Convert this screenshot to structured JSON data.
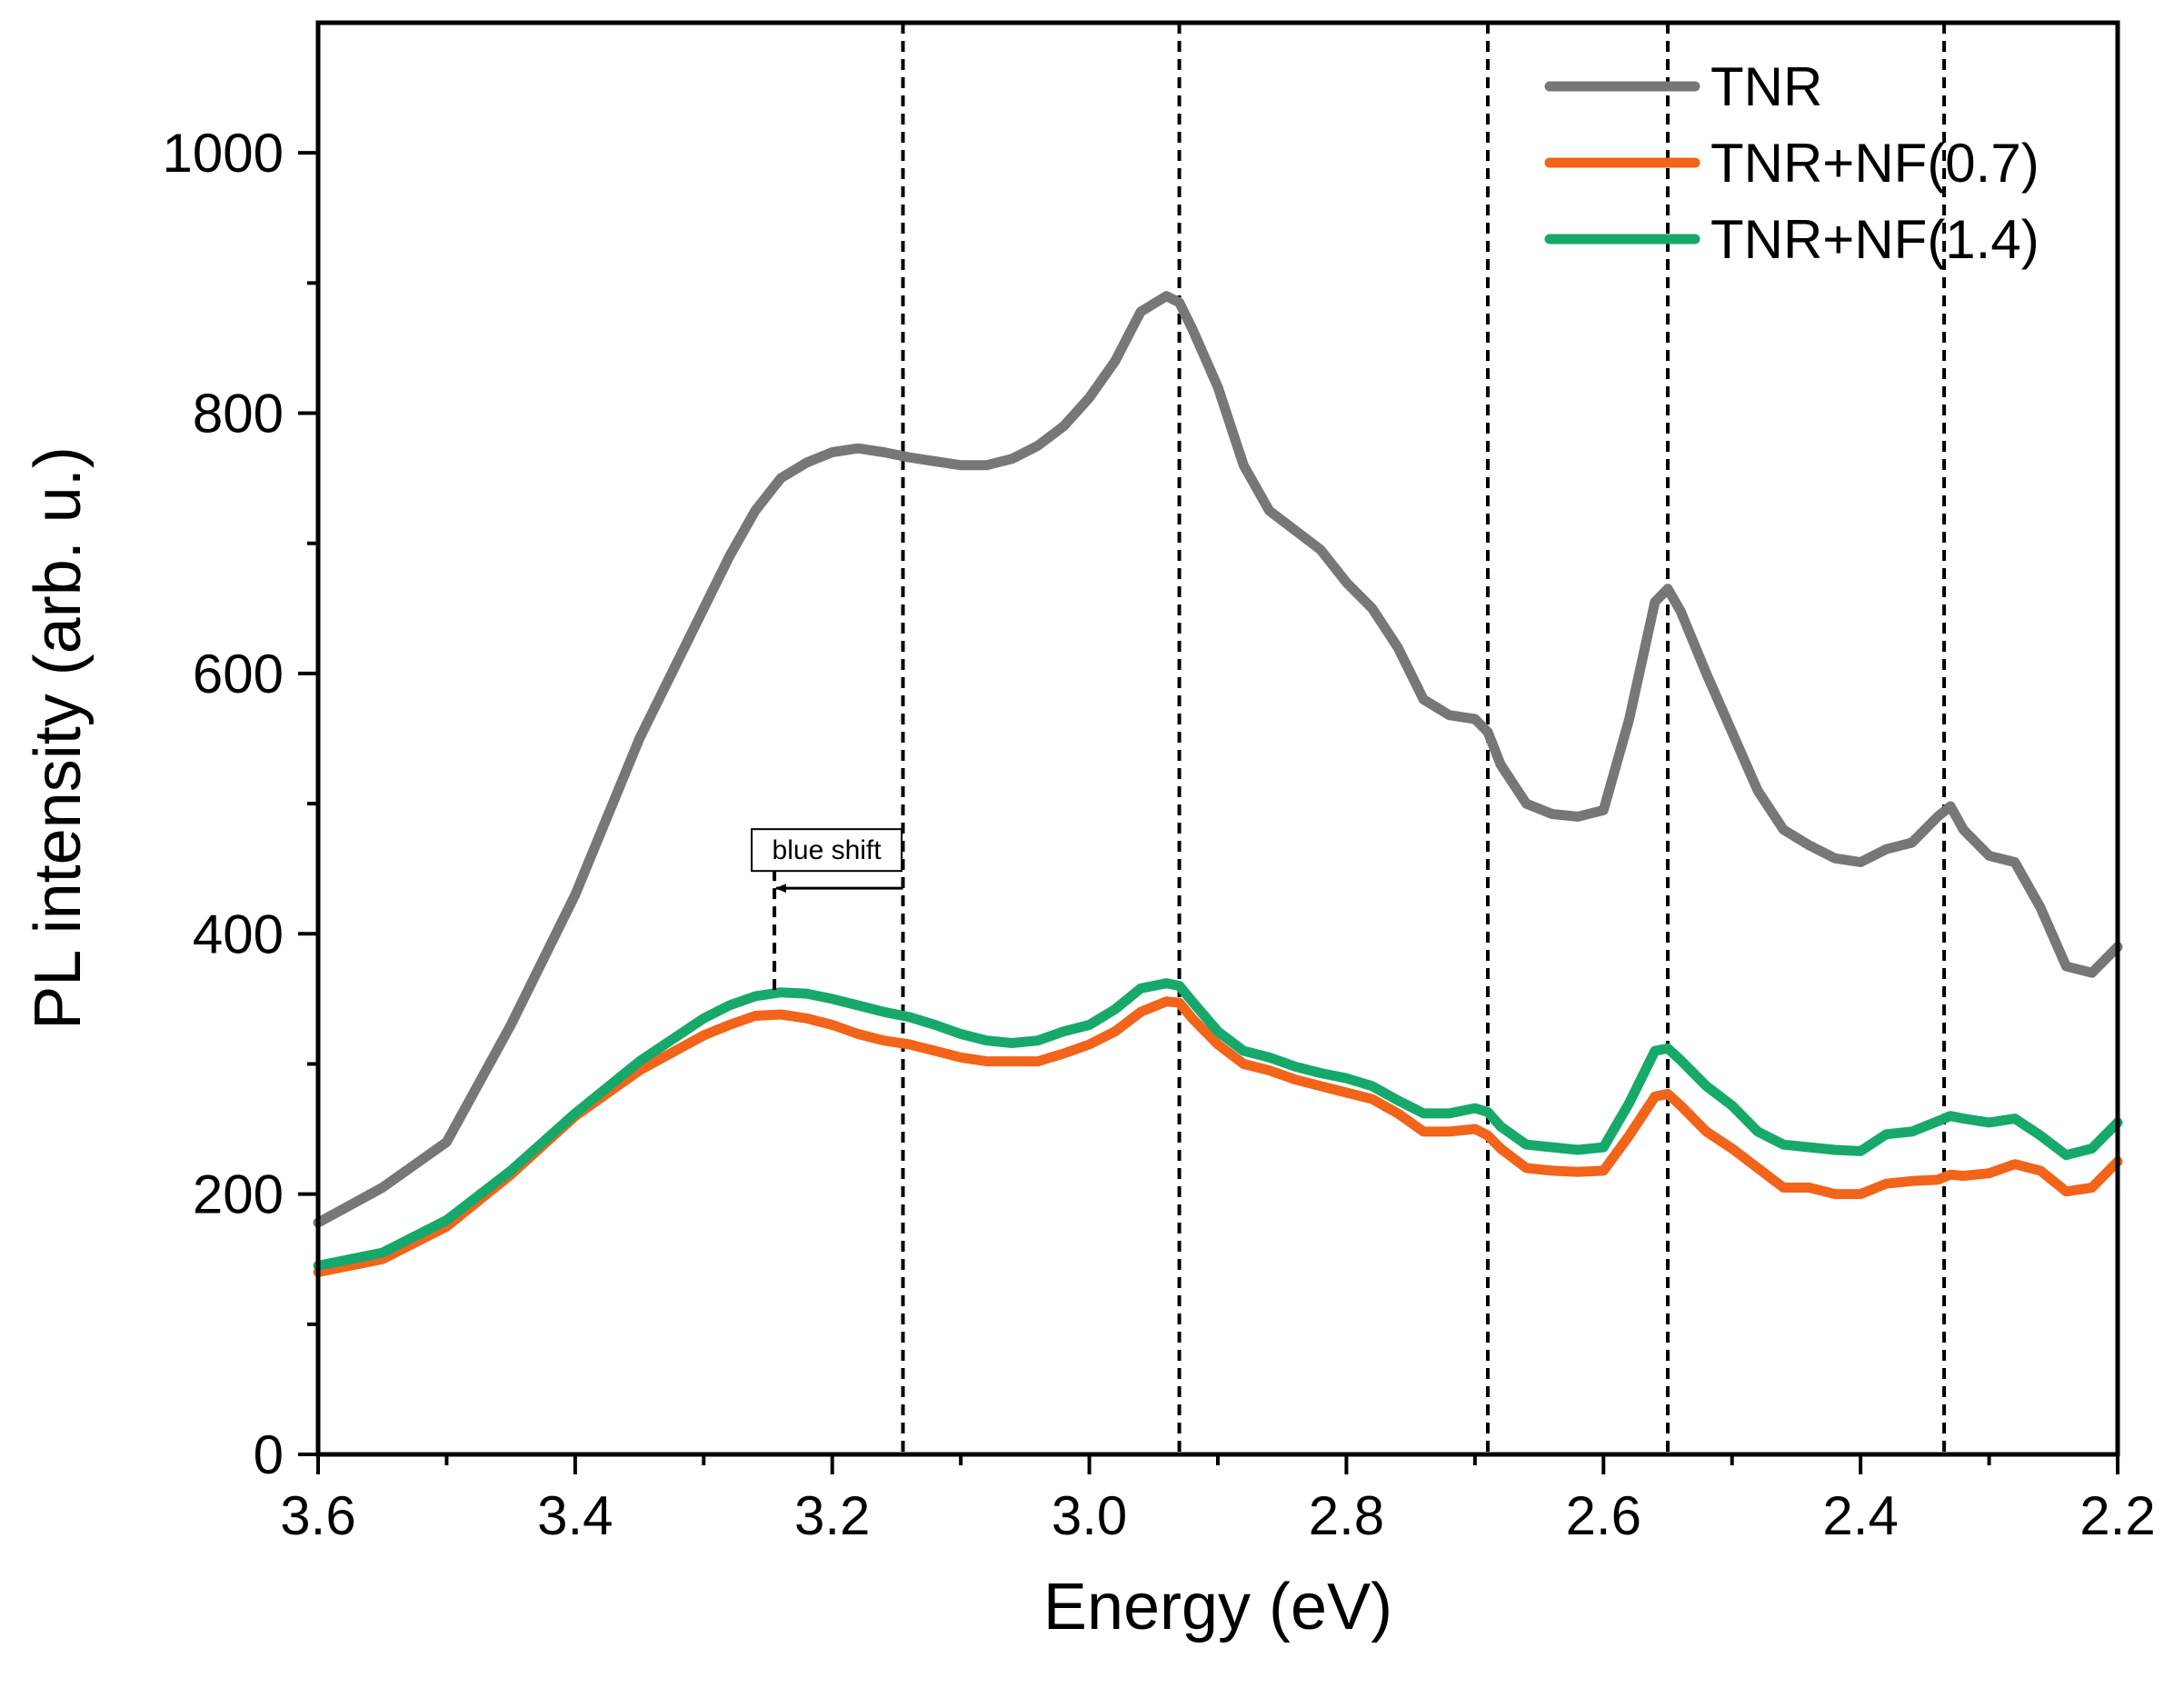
{
  "chart_data": {
    "type": "line",
    "xlabel": "Energy (eV)",
    "ylabel": "PL intensity (arb. u.)",
    "xlim": [
      3.6,
      2.2
    ],
    "ylim": [
      0,
      1100
    ],
    "x_reversed": true,
    "xticks": [
      3.6,
      3.4,
      3.2,
      3.0,
      2.8,
      2.6,
      2.4,
      2.2
    ],
    "xtick_labels": [
      "3.6",
      "3.4",
      "3.2",
      "3.0",
      "2.8",
      "2.6",
      "2.4",
      "2.2"
    ],
    "yticks": [
      0,
      200,
      400,
      600,
      800,
      1000
    ],
    "ytick_labels": [
      "0",
      "200",
      "400",
      "600",
      "800",
      "1000"
    ],
    "grid": false,
    "legend_position": "top-right",
    "series": [
      {
        "name": "TNR",
        "color": "#777777",
        "x": [
          3.6,
          3.55,
          3.5,
          3.45,
          3.4,
          3.35,
          3.3,
          3.28,
          3.26,
          3.24,
          3.22,
          3.2,
          3.18,
          3.16,
          3.14,
          3.12,
          3.1,
          3.08,
          3.06,
          3.04,
          3.02,
          3.0,
          2.98,
          2.96,
          2.94,
          2.93,
          2.92,
          2.9,
          2.88,
          2.86,
          2.84,
          2.82,
          2.8,
          2.78,
          2.76,
          2.74,
          2.72,
          2.7,
          2.69,
          2.68,
          2.66,
          2.64,
          2.62,
          2.6,
          2.58,
          2.56,
          2.55,
          2.54,
          2.52,
          2.5,
          2.48,
          2.46,
          2.44,
          2.42,
          2.4,
          2.38,
          2.36,
          2.34,
          2.33,
          2.32,
          2.3,
          2.28,
          2.26,
          2.24,
          2.22,
          2.2
        ],
        "y": [
          178,
          205,
          240,
          330,
          430,
          550,
          650,
          690,
          725,
          750,
          762,
          770,
          773,
          770,
          766,
          763,
          760,
          760,
          765,
          775,
          790,
          812,
          840,
          878,
          890,
          885,
          865,
          820,
          760,
          725,
          710,
          695,
          670,
          650,
          620,
          580,
          568,
          565,
          555,
          530,
          500,
          492,
          490,
          495,
          565,
          655,
          665,
          648,
          600,
          555,
          510,
          480,
          468,
          458,
          455,
          465,
          470,
          490,
          498,
          480,
          460,
          455,
          420,
          375,
          370,
          390
        ]
      },
      {
        "name": "TNR+NF(0.7)",
        "color": "#F26419",
        "x": [
          3.6,
          3.55,
          3.5,
          3.45,
          3.4,
          3.35,
          3.3,
          3.28,
          3.26,
          3.24,
          3.22,
          3.2,
          3.18,
          3.16,
          3.14,
          3.12,
          3.1,
          3.08,
          3.06,
          3.04,
          3.02,
          3.0,
          2.98,
          2.96,
          2.94,
          2.93,
          2.92,
          2.9,
          2.88,
          2.86,
          2.84,
          2.82,
          2.8,
          2.78,
          2.76,
          2.74,
          2.72,
          2.7,
          2.69,
          2.68,
          2.66,
          2.64,
          2.62,
          2.6,
          2.58,
          2.56,
          2.55,
          2.54,
          2.52,
          2.5,
          2.48,
          2.46,
          2.44,
          2.42,
          2.4,
          2.38,
          2.36,
          2.34,
          2.33,
          2.32,
          2.3,
          2.28,
          2.26,
          2.24,
          2.22,
          2.2
        ],
        "y": [
          140,
          150,
          175,
          215,
          260,
          295,
          322,
          330,
          337,
          338,
          335,
          330,
          323,
          318,
          315,
          310,
          305,
          302,
          302,
          302,
          308,
          315,
          325,
          340,
          348,
          347,
          335,
          315,
          300,
          295,
          288,
          283,
          278,
          273,
          262,
          248,
          248,
          250,
          245,
          235,
          220,
          218,
          217,
          218,
          245,
          275,
          277,
          268,
          248,
          235,
          220,
          205,
          205,
          200,
          200,
          208,
          210,
          211,
          215,
          214,
          216,
          223,
          218,
          202,
          205,
          225
        ]
      },
      {
        "name": "TNR+NF(1.4)",
        "color": "#16A96B",
        "x": [
          3.6,
          3.55,
          3.5,
          3.45,
          3.4,
          3.35,
          3.3,
          3.28,
          3.26,
          3.24,
          3.22,
          3.2,
          3.18,
          3.16,
          3.14,
          3.12,
          3.1,
          3.08,
          3.06,
          3.04,
          3.02,
          3.0,
          2.98,
          2.96,
          2.94,
          2.93,
          2.92,
          2.9,
          2.88,
          2.86,
          2.84,
          2.82,
          2.8,
          2.78,
          2.76,
          2.74,
          2.72,
          2.7,
          2.69,
          2.68,
          2.66,
          2.64,
          2.62,
          2.6,
          2.58,
          2.56,
          2.55,
          2.54,
          2.52,
          2.5,
          2.48,
          2.46,
          2.44,
          2.42,
          2.4,
          2.38,
          2.36,
          2.34,
          2.33,
          2.32,
          2.3,
          2.28,
          2.26,
          2.24,
          2.22,
          2.2
        ],
        "y": [
          145,
          155,
          180,
          218,
          262,
          302,
          335,
          345,
          352,
          355,
          354,
          350,
          345,
          340,
          336,
          330,
          323,
          318,
          316,
          318,
          325,
          330,
          342,
          358,
          362,
          360,
          348,
          325,
          310,
          305,
          298,
          293,
          289,
          283,
          272,
          262,
          262,
          266,
          263,
          252,
          238,
          236,
          234,
          236,
          270,
          310,
          312,
          303,
          283,
          268,
          248,
          238,
          236,
          234,
          233,
          246,
          248,
          256,
          260,
          258,
          255,
          258,
          245,
          230,
          235,
          255
        ]
      }
    ],
    "reference_lines_x": [
      3.145,
      2.93,
      2.69,
      2.55,
      2.335
    ],
    "annotations": [
      {
        "text": "blue shift",
        "arrow_from_x": 3.145,
        "arrow_to_x": 3.245,
        "arrow_y": 435,
        "marker_x": 3.245
      }
    ]
  }
}
